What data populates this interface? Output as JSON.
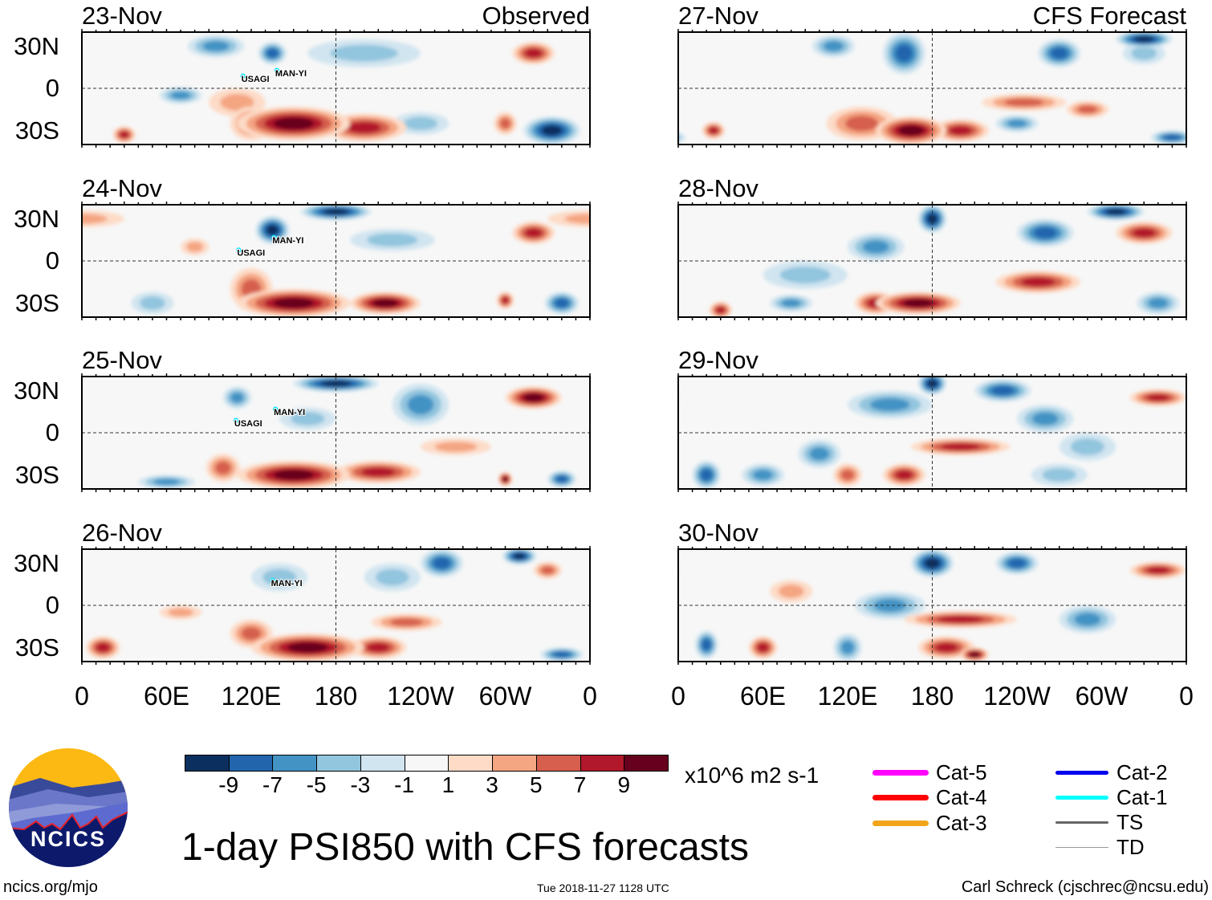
{
  "title": "1-day PSI850 with CFS forecasts",
  "units": "x10^6 m2 s-1",
  "observed_label": "Observed",
  "forecast_label": "CFS Forecast",
  "lat_labels": [
    "30N",
    "0",
    "30S"
  ],
  "lon_labels": [
    "0",
    "60E",
    "120E",
    "180",
    "120W",
    "60W",
    "0"
  ],
  "colorbar": {
    "levels": [
      "-9",
      "-7",
      "-5",
      "-3",
      "-1",
      "1",
      "3",
      "5",
      "7",
      "9"
    ],
    "colors": [
      "#0b2f5e",
      "#2265ad",
      "#4393c4",
      "#92c5de",
      "#d1e5f0",
      "#f7f7f7",
      "#fddbc7",
      "#f4a582",
      "#d6604d",
      "#b2182b",
      "#67001f"
    ]
  },
  "legend": [
    {
      "label": "Cat-5",
      "color": "#ff00ff"
    },
    {
      "label": "Cat-4",
      "color": "#ff0000"
    },
    {
      "label": "Cat-3",
      "color": "#f2a51a"
    },
    {
      "label": "Cat-2",
      "color": "#0000ee"
    },
    {
      "label": "Cat-1",
      "color": "#00ffff"
    },
    {
      "label": "TS",
      "color": "#666666"
    },
    {
      "label": "TD",
      "color": "#999999"
    }
  ],
  "footer": {
    "url": "ncics.org/mjo",
    "timestamp": "Tue 2018-11-27 1128 UTC",
    "author": "Carl Schreck (cjschrec@ncsu.edu)",
    "logo_text": "NCICS"
  },
  "panels": [
    {
      "date": "23-Nov",
      "type": "observed",
      "anomalies": [
        [
          150,
          -25,
          40,
          12,
          9
        ],
        [
          200,
          -28,
          30,
          10,
          7
        ],
        [
          120,
          -25,
          15,
          12,
          5
        ],
        [
          110,
          -10,
          20,
          10,
          3
        ],
        [
          320,
          25,
          15,
          8,
          7
        ],
        [
          135,
          25,
          10,
          8,
          -7
        ],
        [
          70,
          -5,
          15,
          6,
          -5
        ],
        [
          333,
          -30,
          20,
          10,
          -9
        ],
        [
          95,
          30,
          20,
          8,
          -5
        ],
        [
          300,
          -25,
          8,
          8,
          5
        ],
        [
          200,
          25,
          40,
          10,
          -3
        ],
        [
          240,
          -25,
          20,
          8,
          -3
        ],
        [
          30,
          -33,
          8,
          6,
          7
        ]
      ],
      "storms": [
        {
          "name": "USAGI",
          "lon": 113,
          "lat": 7
        },
        {
          "name": "MAN-YI",
          "lon": 137,
          "lat": 11
        }
      ]
    },
    {
      "date": "24-Nov",
      "type": "observed",
      "anomalies": [
        [
          150,
          -30,
          40,
          10,
          9
        ],
        [
          215,
          -30,
          25,
          8,
          8
        ],
        [
          120,
          -20,
          15,
          15,
          5
        ],
        [
          135,
          22,
          12,
          10,
          -9
        ],
        [
          180,
          35,
          25,
          6,
          -9
        ],
        [
          320,
          20,
          15,
          8,
          7
        ],
        [
          300,
          -28,
          6,
          6,
          7
        ],
        [
          340,
          -30,
          12,
          8,
          -7
        ],
        [
          50,
          -30,
          15,
          8,
          -3
        ],
        [
          220,
          15,
          30,
          8,
          -3
        ],
        [
          80,
          10,
          10,
          6,
          3
        ],
        [
          0,
          30,
          30,
          6,
          3
        ]
      ],
      "storms": [
        {
          "name": "USAGI",
          "lon": 110,
          "lat": 6
        },
        {
          "name": "MAN-YI",
          "lon": 135,
          "lat": 15
        }
      ]
    },
    {
      "date": "25-Nov",
      "type": "observed",
      "anomalies": [
        [
          150,
          -30,
          40,
          10,
          9
        ],
        [
          210,
          -28,
          30,
          8,
          7
        ],
        [
          100,
          -25,
          12,
          10,
          5
        ],
        [
          110,
          25,
          10,
          8,
          -5
        ],
        [
          180,
          35,
          30,
          6,
          -9
        ],
        [
          240,
          20,
          20,
          15,
          -5
        ],
        [
          320,
          25,
          20,
          8,
          9
        ],
        [
          265,
          -10,
          25,
          6,
          3
        ],
        [
          340,
          -33,
          10,
          6,
          -7
        ],
        [
          300,
          -33,
          5,
          5,
          9
        ],
        [
          60,
          -35,
          20,
          5,
          -5
        ],
        [
          160,
          10,
          20,
          8,
          -3
        ]
      ],
      "storms": [
        {
          "name": "USAGI",
          "lon": 108,
          "lat": 7
        },
        {
          "name": "MAN-YI",
          "lon": 136,
          "lat": 15
        }
      ]
    },
    {
      "date": "26-Nov",
      "type": "observed",
      "anomalies": [
        [
          160,
          -30,
          40,
          10,
          9
        ],
        [
          210,
          -30,
          20,
          8,
          7
        ],
        [
          120,
          -20,
          15,
          10,
          5
        ],
        [
          255,
          30,
          15,
          10,
          -7
        ],
        [
          310,
          35,
          12,
          6,
          -9
        ],
        [
          220,
          20,
          20,
          10,
          -3
        ],
        [
          230,
          -12,
          25,
          6,
          5
        ],
        [
          140,
          20,
          20,
          10,
          -3
        ],
        [
          15,
          -30,
          12,
          8,
          7
        ],
        [
          340,
          -35,
          15,
          5,
          -7
        ],
        [
          330,
          25,
          10,
          6,
          5
        ],
        [
          70,
          -5,
          15,
          5,
          3
        ]
      ],
      "storms": [
        {
          "name": "MAN-YI",
          "lon": 134,
          "lat": 16
        }
      ]
    },
    {
      "date": "27-Nov",
      "type": "forecast",
      "anomalies": [
        [
          165,
          -30,
          25,
          10,
          9
        ],
        [
          200,
          -30,
          20,
          8,
          7
        ],
        [
          130,
          -25,
          25,
          12,
          5
        ],
        [
          245,
          -10,
          30,
          6,
          5
        ],
        [
          290,
          -15,
          15,
          6,
          5
        ],
        [
          330,
          35,
          20,
          6,
          -9
        ],
        [
          270,
          25,
          15,
          10,
          -7
        ],
        [
          160,
          25,
          15,
          15,
          -7
        ],
        [
          240,
          -25,
          15,
          6,
          -5
        ],
        [
          110,
          30,
          15,
          8,
          -5
        ],
        [
          25,
          -30,
          8,
          6,
          7
        ],
        [
          330,
          25,
          15,
          8,
          -3
        ],
        [
          350,
          -35,
          15,
          5,
          -7
        ]
      ],
      "storms": []
    },
    {
      "date": "28-Nov",
      "type": "forecast",
      "anomalies": [
        [
          170,
          -30,
          30,
          8,
          9
        ],
        [
          140,
          -30,
          15,
          8,
          7
        ],
        [
          255,
          -15,
          30,
          8,
          7
        ],
        [
          180,
          30,
          10,
          10,
          -9
        ],
        [
          310,
          35,
          20,
          6,
          -9
        ],
        [
          260,
          20,
          20,
          10,
          -7
        ],
        [
          90,
          -10,
          30,
          10,
          -3
        ],
        [
          330,
          20,
          20,
          8,
          7
        ],
        [
          140,
          10,
          20,
          10,
          -5
        ],
        [
          30,
          -35,
          8,
          6,
          7
        ],
        [
          340,
          -30,
          15,
          8,
          -5
        ],
        [
          80,
          -30,
          15,
          6,
          -5
        ]
      ],
      "storms": []
    },
    {
      "date": "29-Nov",
      "type": "forecast",
      "anomalies": [
        [
          200,
          -10,
          35,
          6,
          7
        ],
        [
          340,
          25,
          20,
          6,
          7
        ],
        [
          180,
          35,
          10,
          8,
          -9
        ],
        [
          230,
          30,
          20,
          8,
          -7
        ],
        [
          150,
          20,
          30,
          10,
          -5
        ],
        [
          160,
          -30,
          15,
          8,
          7
        ],
        [
          120,
          -30,
          10,
          8,
          5
        ],
        [
          260,
          10,
          20,
          10,
          -5
        ],
        [
          20,
          -30,
          10,
          10,
          -7
        ],
        [
          60,
          -30,
          15,
          8,
          -5
        ],
        [
          100,
          -15,
          15,
          10,
          -5
        ],
        [
          290,
          -10,
          20,
          10,
          -3
        ],
        [
          270,
          -30,
          20,
          8,
          -3
        ]
      ],
      "storms": []
    },
    {
      "date": "30-Nov",
      "type": "forecast",
      "anomalies": [
        [
          200,
          -10,
          40,
          6,
          7
        ],
        [
          340,
          25,
          20,
          6,
          7
        ],
        [
          180,
          30,
          15,
          10,
          -9
        ],
        [
          240,
          30,
          15,
          8,
          -7
        ],
        [
          150,
          0,
          25,
          10,
          -5
        ],
        [
          20,
          -28,
          8,
          10,
          -7
        ],
        [
          60,
          -30,
          10,
          8,
          7
        ],
        [
          120,
          -30,
          10,
          10,
          -5
        ],
        [
          190,
          -30,
          20,
          8,
          7
        ],
        [
          210,
          -35,
          10,
          5,
          9
        ],
        [
          290,
          -10,
          20,
          10,
          -5
        ],
        [
          80,
          10,
          15,
          8,
          3
        ]
      ],
      "storms": []
    }
  ]
}
